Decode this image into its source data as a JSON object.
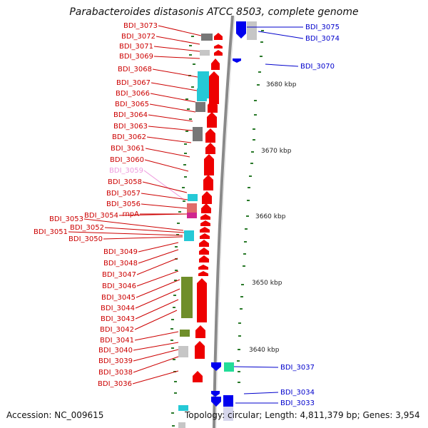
{
  "title": "Parabacteroides distasonis ATCC 8503, complete genome",
  "footer": {
    "accession": "Accession: NC_009615",
    "summary": "Topology: circular; Length: 4,811,379 bp; Genes: 3,954"
  },
  "colors": {
    "backbone": "#8a8a8a",
    "forward_gene": "#ee0000",
    "reverse_gene": "#0000ee",
    "tick": "#2a7a2a",
    "cyan": "#25c9d6",
    "olive": "#6f8e2a",
    "gray": "#777777",
    "light_gray": "#c6c6c6",
    "pink": "#e06b6b",
    "magenta": "#d0258f",
    "teal": "#22dd99"
  },
  "scale_labels": [
    {
      "text": "3680 kbp"
    },
    {
      "text": "3670 kbp"
    },
    {
      "text": "3660 kbp"
    },
    {
      "text": "3650 kbp"
    },
    {
      "text": "3640 kbp"
    }
  ],
  "left_labels": [
    {
      "text": "BDI_3073",
      "color": "#cc0000"
    },
    {
      "text": "BDI_3072",
      "color": "#cc0000"
    },
    {
      "text": "BDI_3071",
      "color": "#cc0000"
    },
    {
      "text": "BDI_3069",
      "color": "#cc0000"
    },
    {
      "text": "BDI_3068",
      "color": "#cc0000"
    },
    {
      "text": "BDI_3067",
      "color": "#cc0000"
    },
    {
      "text": "BDI_3066",
      "color": "#cc0000"
    },
    {
      "text": "BDI_3065",
      "color": "#cc0000"
    },
    {
      "text": "BDI_3064",
      "color": "#cc0000"
    },
    {
      "text": "BDI_3063",
      "color": "#cc0000"
    },
    {
      "text": "BDI_3062",
      "color": "#cc0000"
    },
    {
      "text": "BDI_3061",
      "color": "#cc0000"
    },
    {
      "text": "BDI_3060",
      "color": "#cc0000"
    },
    {
      "text": "BDI_3059",
      "color": "#ee99dd"
    },
    {
      "text": "BDI_3058",
      "color": "#cc0000"
    },
    {
      "text": "BDI_3057",
      "color": "#cc0000"
    },
    {
      "text": "BDI_3056",
      "color": "#cc0000"
    },
    {
      "text": "BDI_3054",
      "color": "#cc0000"
    },
    {
      "text": "rnpA",
      "color": "#cc0000"
    },
    {
      "text": "BDI_3053",
      "color": "#cc0000"
    },
    {
      "text": "BDI_3052",
      "color": "#cc0000"
    },
    {
      "text": "BDI_3051",
      "color": "#cc0000"
    },
    {
      "text": "BDI_3050",
      "color": "#cc0000"
    },
    {
      "text": "BDI_3049",
      "color": "#cc0000"
    },
    {
      "text": "BDI_3048",
      "color": "#cc0000"
    },
    {
      "text": "BDI_3047",
      "color": "#cc0000"
    },
    {
      "text": "BDI_3046",
      "color": "#cc0000"
    },
    {
      "text": "BDI_3045",
      "color": "#cc0000"
    },
    {
      "text": "BDI_3044",
      "color": "#cc0000"
    },
    {
      "text": "BDI_3043",
      "color": "#cc0000"
    },
    {
      "text": "BDI_3042",
      "color": "#cc0000"
    },
    {
      "text": "BDI_3041",
      "color": "#cc0000"
    },
    {
      "text": "BDI_3040",
      "color": "#cc0000"
    },
    {
      "text": "BDI_3039",
      "color": "#cc0000"
    },
    {
      "text": "BDI_3038",
      "color": "#cc0000"
    },
    {
      "text": "BDI_3036",
      "color": "#cc0000"
    }
  ],
  "right_labels": [
    {
      "text": "BDI_3075",
      "color": "#0000cc"
    },
    {
      "text": "BDI_3074",
      "color": "#0000cc"
    },
    {
      "text": "BDI_3070",
      "color": "#0000cc"
    },
    {
      "text": "BDI_3037",
      "color": "#0000cc"
    },
    {
      "text": "BDI_3034",
      "color": "#0000cc"
    },
    {
      "text": "BDI_3033",
      "color": "#0000cc"
    }
  ]
}
